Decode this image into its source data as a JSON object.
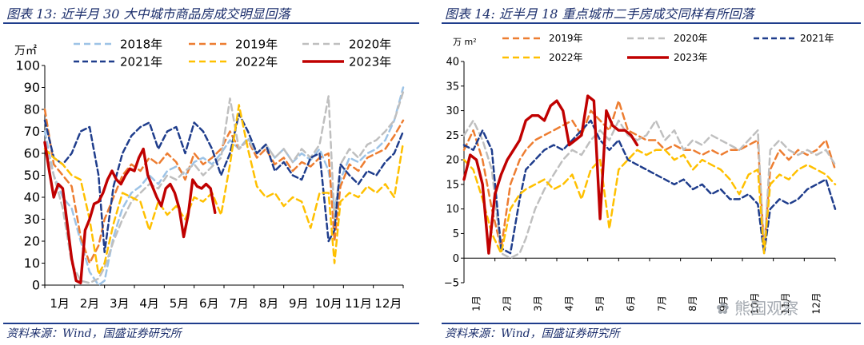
{
  "left": {
    "title": "图表 13:  近半月 30 大中城市商品房成交明显回落",
    "source": "资料来源：Wind，国盛证券研究所"
  },
  "right": {
    "title": "图表 14:  近半月 18 重点城市二手房成交同样有所回落",
    "source": "资料来源：Wind，国盛证券研究所"
  },
  "watermark": "熊园观察",
  "chart_data": [
    {
      "type": "line",
      "title": "近半月 30 大中城市商品房成交明显回落",
      "ylabel": "万㎡",
      "ylim": [
        0,
        100
      ],
      "yticks": [
        0,
        10,
        20,
        30,
        40,
        50,
        60,
        70,
        80,
        90,
        100
      ],
      "xlim": [
        0,
        12
      ],
      "xticks": [
        {
          "x": 0.5,
          "label": "1月"
        },
        {
          "x": 1.5,
          "label": "2月"
        },
        {
          "x": 2.5,
          "label": "3月"
        },
        {
          "x": 3.5,
          "label": "4月"
        },
        {
          "x": 4.5,
          "label": "5月"
        },
        {
          "x": 5.5,
          "label": "6月"
        },
        {
          "x": 6.5,
          "label": "7月"
        },
        {
          "x": 7.5,
          "label": "8月"
        },
        {
          "x": 8.5,
          "label": "9月"
        },
        {
          "x": 9.5,
          "label": "10月"
        },
        {
          "x": 10.5,
          "label": "11月"
        },
        {
          "x": 11.5,
          "label": "12月"
        }
      ],
      "series": [
        {
          "name": "2018年",
          "color": "#9dc3e6",
          "dash": "8,5",
          "x": [
            0,
            0.3,
            0.6,
            0.9,
            1.2,
            1.5,
            1.8,
            2.0,
            2.3,
            2.6,
            2.9,
            3.2,
            3.5,
            3.8,
            4.1,
            4.4,
            4.7,
            5.0,
            5.3,
            5.6,
            5.9,
            6.2,
            6.5,
            6.8,
            7.1,
            7.4,
            7.7,
            8.0,
            8.3,
            8.6,
            8.9,
            9.2,
            9.5,
            9.7,
            9.9,
            10.2,
            10.5,
            10.8,
            11.1,
            11.4,
            11.7,
            12.0
          ],
          "y": [
            70,
            50,
            40,
            35,
            20,
            6,
            0,
            2,
            22,
            35,
            42,
            45,
            50,
            46,
            52,
            54,
            50,
            56,
            58,
            55,
            60,
            66,
            62,
            67,
            60,
            64,
            58,
            62,
            56,
            60,
            57,
            62,
            52,
            35,
            48,
            58,
            56,
            60,
            62,
            66,
            75,
            90
          ]
        },
        {
          "name": "2019年",
          "color": "#ed7d31",
          "dash": "8,5",
          "x": [
            0,
            0.3,
            0.6,
            0.9,
            1.2,
            1.5,
            1.8,
            2.0,
            2.3,
            2.6,
            2.9,
            3.2,
            3.5,
            3.8,
            4.1,
            4.4,
            4.7,
            5.0,
            5.3,
            5.6,
            5.9,
            6.2,
            6.5,
            6.8,
            7.1,
            7.4,
            7.7,
            8.0,
            8.3,
            8.6,
            8.9,
            9.2,
            9.5,
            9.7,
            9.9,
            10.2,
            10.5,
            10.8,
            11.1,
            11.4,
            11.7,
            12.0
          ],
          "y": [
            80,
            55,
            50,
            45,
            22,
            10,
            18,
            30,
            40,
            50,
            55,
            52,
            58,
            55,
            60,
            56,
            48,
            60,
            55,
            58,
            62,
            70,
            62,
            66,
            58,
            62,
            55,
            58,
            52,
            56,
            54,
            58,
            60,
            20,
            45,
            55,
            52,
            58,
            60,
            62,
            68,
            75
          ]
        },
        {
          "name": "2020年",
          "color": "#bfbfbf",
          "dash": "8,5",
          "x": [
            0,
            0.3,
            0.6,
            0.9,
            1.2,
            1.5,
            1.8,
            2.0,
            2.3,
            2.6,
            2.9,
            3.2,
            3.5,
            3.8,
            4.1,
            4.4,
            4.7,
            5.0,
            5.3,
            5.6,
            5.9,
            6.2,
            6.5,
            6.8,
            7.1,
            7.4,
            7.7,
            8.0,
            8.3,
            8.6,
            8.9,
            9.2,
            9.5,
            9.7,
            9.9,
            10.2,
            10.5,
            10.8,
            11.1,
            11.4,
            11.7,
            12.0
          ],
          "y": [
            65,
            50,
            35,
            10,
            2,
            1,
            3,
            8,
            20,
            30,
            38,
            42,
            46,
            44,
            50,
            48,
            52,
            55,
            50,
            54,
            58,
            85,
            62,
            66,
            60,
            64,
            58,
            62,
            56,
            62,
            58,
            64,
            86,
            30,
            55,
            62,
            58,
            64,
            66,
            70,
            75,
            88
          ]
        },
        {
          "name": "2021年",
          "color": "#1f3d8c",
          "dash": "7,4",
          "x": [
            0,
            0.3,
            0.6,
            0.9,
            1.2,
            1.5,
            1.8,
            2.0,
            2.3,
            2.6,
            2.9,
            3.2,
            3.5,
            3.8,
            4.1,
            4.4,
            4.7,
            5.0,
            5.3,
            5.6,
            5.9,
            6.2,
            6.5,
            6.8,
            7.1,
            7.4,
            7.7,
            8.0,
            8.3,
            8.6,
            8.9,
            9.2,
            9.5,
            9.7,
            9.9,
            10.2,
            10.5,
            10.8,
            11.1,
            11.4,
            11.7,
            12.0
          ],
          "y": [
            75,
            58,
            55,
            60,
            70,
            72,
            50,
            15,
            45,
            60,
            68,
            72,
            74,
            62,
            70,
            72,
            60,
            74,
            70,
            62,
            50,
            60,
            78,
            70,
            60,
            64,
            52,
            56,
            50,
            48,
            58,
            60,
            20,
            25,
            55,
            50,
            46,
            52,
            50,
            56,
            60,
            70
          ]
        },
        {
          "name": "2022年",
          "color": "#ffc000",
          "dash": "8,5",
          "x": [
            0,
            0.3,
            0.6,
            0.9,
            1.2,
            1.5,
            1.8,
            2.0,
            2.3,
            2.6,
            2.9,
            3.2,
            3.5,
            3.8,
            4.1,
            4.4,
            4.7,
            5.0,
            5.3,
            5.6,
            5.9,
            6.2,
            6.5,
            6.8,
            7.1,
            7.4,
            7.7,
            8.0,
            8.3,
            8.6,
            8.9,
            9.2,
            9.5,
            9.7,
            9.9,
            10.2,
            10.5,
            10.8,
            11.1,
            11.4,
            11.7,
            12.0
          ],
          "y": [
            62,
            58,
            55,
            50,
            48,
            30,
            5,
            10,
            28,
            42,
            40,
            38,
            25,
            38,
            32,
            36,
            30,
            40,
            38,
            42,
            32,
            55,
            82,
            62,
            45,
            40,
            42,
            36,
            40,
            38,
            26,
            42,
            42,
            10,
            38,
            42,
            40,
            45,
            42,
            46,
            40,
            65
          ]
        },
        {
          "name": "2023年",
          "color": "#c00000",
          "dash": "",
          "x": [
            0,
            0.15,
            0.3,
            0.45,
            0.6,
            0.75,
            0.9,
            1.05,
            1.2,
            1.35,
            1.5,
            1.65,
            1.8,
            1.95,
            2.1,
            2.25,
            2.4,
            2.55,
            2.7,
            2.85,
            3.0,
            3.15,
            3.3,
            3.45,
            3.6,
            3.75,
            3.9,
            4.05,
            4.2,
            4.35,
            4.5,
            4.65,
            4.8,
            4.95,
            5.1,
            5.25,
            5.4,
            5.55,
            5.7
          ],
          "y": [
            65,
            52,
            40,
            46,
            44,
            28,
            12,
            2,
            1,
            25,
            30,
            37,
            38,
            42,
            48,
            52,
            48,
            46,
            50,
            53,
            52,
            58,
            62,
            50,
            45,
            40,
            36,
            44,
            46,
            42,
            35,
            22,
            32,
            48,
            45,
            44,
            46,
            44,
            33
          ]
        }
      ]
    },
    {
      "type": "line",
      "title": "近半月 18 重点城市二手房成交同样有所回落",
      "ylabel": "万 m²",
      "ylim": [
        -5,
        40
      ],
      "yticks": [
        -5,
        0,
        5,
        10,
        15,
        20,
        25,
        30,
        35,
        40
      ],
      "xlim": [
        0,
        12
      ],
      "xticks": [
        {
          "x": 0.5,
          "label": "1月"
        },
        {
          "x": 1.5,
          "label": "2月"
        },
        {
          "x": 2.5,
          "label": "3月"
        },
        {
          "x": 3.5,
          "label": "4月"
        },
        {
          "x": 4.5,
          "label": "5月"
        },
        {
          "x": 5.5,
          "label": "6月"
        },
        {
          "x": 6.5,
          "label": "7月"
        },
        {
          "x": 7.5,
          "label": "8月"
        },
        {
          "x": 8.5,
          "label": "9月"
        },
        {
          "x": 9.5,
          "label": "10月"
        },
        {
          "x": 10.5,
          "label": "11月"
        },
        {
          "x": 11.5,
          "label": "12月"
        }
      ],
      "series": [
        {
          "name": "2019年",
          "color": "#ed7d31",
          "dash": "8,5",
          "x": [
            0,
            0.3,
            0.6,
            0.9,
            1.2,
            1.5,
            1.8,
            2.0,
            2.3,
            2.6,
            2.9,
            3.2,
            3.5,
            3.8,
            4.1,
            4.4,
            4.7,
            5.0,
            5.3,
            5.6,
            5.9,
            6.2,
            6.5,
            6.8,
            7.1,
            7.4,
            7.7,
            8.0,
            8.3,
            8.6,
            8.9,
            9.2,
            9.5,
            9.7,
            9.9,
            10.2,
            10.5,
            10.8,
            11.1,
            11.4,
            11.7,
            12.0
          ],
          "y": [
            22,
            26,
            20,
            10,
            2,
            15,
            20,
            22,
            24,
            25,
            26,
            27,
            28,
            25,
            30,
            28,
            26,
            32,
            26,
            25,
            24,
            24,
            22,
            23,
            22,
            22,
            21,
            22,
            21,
            22,
            22,
            23,
            24,
            2,
            18,
            22,
            20,
            22,
            21,
            22,
            24,
            18
          ]
        },
        {
          "name": "2020年",
          "color": "#bfbfbf",
          "dash": "8,5",
          "x": [
            0,
            0.3,
            0.6,
            0.9,
            1.2,
            1.5,
            1.8,
            2.0,
            2.3,
            2.6,
            2.9,
            3.2,
            3.5,
            3.8,
            4.1,
            4.4,
            4.7,
            5.0,
            5.3,
            5.6,
            5.9,
            6.2,
            6.5,
            6.8,
            7.1,
            7.4,
            7.7,
            8.0,
            8.3,
            8.6,
            8.9,
            9.2,
            9.5,
            9.7,
            9.9,
            10.2,
            10.5,
            10.8,
            11.1,
            11.4,
            11.7,
            12.0
          ],
          "y": [
            25,
            28,
            24,
            18,
            1,
            0,
            1,
            4,
            10,
            14,
            17,
            20,
            22,
            21,
            24,
            26,
            24,
            28,
            25,
            24,
            25,
            28,
            24,
            26,
            22,
            24,
            23,
            25,
            24,
            23,
            22,
            24,
            26,
            1,
            22,
            24,
            22,
            21,
            22,
            21,
            22,
            19
          ]
        },
        {
          "name": "2021年",
          "color": "#1f3d8c",
          "dash": "7,4",
          "x": [
            0,
            0.3,
            0.6,
            0.9,
            1.2,
            1.5,
            1.8,
            2.0,
            2.3,
            2.6,
            2.9,
            3.2,
            3.5,
            3.8,
            4.1,
            4.4,
            4.7,
            5.0,
            5.3,
            5.6,
            5.9,
            6.2,
            6.5,
            6.8,
            7.1,
            7.4,
            7.7,
            8.0,
            8.3,
            8.6,
            8.9,
            9.2,
            9.5,
            9.7,
            9.9,
            10.2,
            10.5,
            10.8,
            11.1,
            11.4,
            11.7,
            12.0
          ],
          "y": [
            23,
            22,
            26,
            22,
            2,
            1,
            12,
            18,
            20,
            22,
            23,
            22,
            24,
            26,
            28,
            24,
            22,
            24,
            20,
            19,
            18,
            17,
            16,
            15,
            16,
            14,
            15,
            13,
            14,
            12,
            12,
            13,
            11,
            1,
            10,
            12,
            11,
            12,
            14,
            15,
            16,
            10
          ]
        },
        {
          "name": "2022年",
          "color": "#ffc000",
          "dash": "8,5",
          "x": [
            0,
            0.3,
            0.6,
            0.9,
            1.2,
            1.5,
            1.8,
            2.0,
            2.3,
            2.6,
            2.9,
            3.2,
            3.5,
            3.8,
            4.1,
            4.4,
            4.7,
            5.0,
            5.3,
            5.6,
            5.9,
            6.2,
            6.5,
            6.8,
            7.1,
            7.4,
            7.7,
            8.0,
            8.3,
            8.6,
            8.9,
            9.2,
            9.5,
            9.7,
            9.9,
            10.2,
            10.5,
            10.8,
            11.1,
            11.4,
            11.7,
            12.0
          ],
          "y": [
            20,
            18,
            12,
            5,
            1,
            10,
            13,
            14,
            15,
            16,
            14,
            15,
            17,
            12,
            18,
            20,
            6,
            18,
            20,
            22,
            21,
            22,
            22,
            20,
            21,
            18,
            20,
            19,
            18,
            16,
            13,
            17,
            18,
            1,
            15,
            17,
            16,
            18,
            19,
            18,
            17,
            15
          ]
        },
        {
          "name": "2023年",
          "color": "#c00000",
          "dash": "",
          "x": [
            0,
            0.2,
            0.4,
            0.6,
            0.8,
            1.0,
            1.2,
            1.4,
            1.6,
            1.8,
            2.0,
            2.2,
            2.4,
            2.6,
            2.8,
            3.0,
            3.2,
            3.4,
            3.6,
            3.8,
            4.0,
            4.2,
            4.4,
            4.6,
            4.8,
            5.0,
            5.2,
            5.4,
            5.6
          ],
          "y": [
            16,
            21,
            20,
            15,
            1,
            13,
            17,
            20,
            22,
            24,
            28,
            29,
            29,
            28,
            31,
            32,
            30,
            23,
            24,
            25,
            33,
            32,
            8,
            30,
            27,
            26,
            26,
            25,
            23
          ]
        }
      ]
    }
  ]
}
